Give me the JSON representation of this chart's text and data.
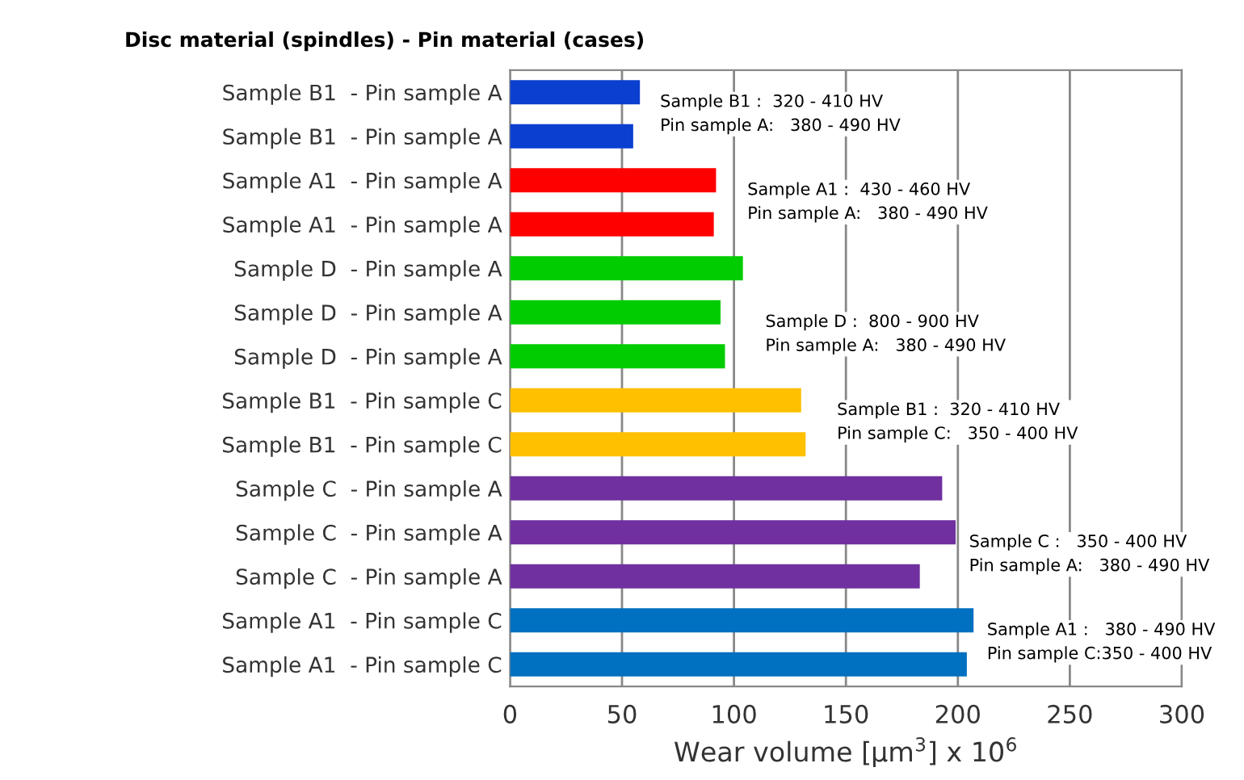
{
  "chart_data": {
    "type": "bar",
    "orientation": "horizontal",
    "title": "Disc material (spindles) - Pin material (cases)",
    "xlabel": "Wear volume [µm$^{3}$] x 10$^{6}$",
    "categories": [
      "Sample B1  - Pin sample A",
      "Sample B1  - Pin sample A",
      "Sample A1  - Pin sample A",
      "Sample A1  - Pin sample A",
      "Sample D  - Pin sample A",
      "Sample D  - Pin sample A",
      "Sample D  - Pin sample A",
      "Sample B1  - Pin sample C",
      "Sample B1  - Pin sample C",
      "Sample C  - Pin sample A",
      "Sample C  - Pin sample A",
      "Sample C  - Pin sample A",
      "Sample A1  - Pin sample C",
      "Sample A1  - Pin sample C"
    ],
    "values": [
      58,
      55,
      92,
      91,
      104,
      94,
      96,
      130,
      132,
      193,
      199,
      183,
      207,
      204
    ],
    "colors": [
      "#0a3fd0",
      "#0a3fd0",
      "#ff0000",
      "#ff0000",
      "#00cc00",
      "#00cc00",
      "#00cc00",
      "#ffc000",
      "#ffc000",
      "#7030a0",
      "#7030a0",
      "#7030a0",
      "#0070c0",
      "#0070c0"
    ],
    "xlim": [
      0,
      300
    ],
    "xticks": [
      0,
      50,
      100,
      150,
      200,
      250,
      300
    ],
    "grid": "x",
    "legend": false,
    "annotations": [
      "Sample B1 :  320 - 410 HV\nPin sample A:   380 - 490 HV",
      "Sample A1 :  430 - 460 HV\nPin sample A:   380 - 490 HV",
      "Sample D :  800 - 900 HV\nPin sample A:   380 - 490 HV",
      "Sample B1 :  320 - 410 HV\nPin sample C:   350 - 400 HV",
      "Sample C :   350 - 400 HV\nPin sample A:   380 - 490 HV",
      "Sample A1 :   380 - 490 HV\nPin sample C:350 - 400 HV"
    ]
  }
}
